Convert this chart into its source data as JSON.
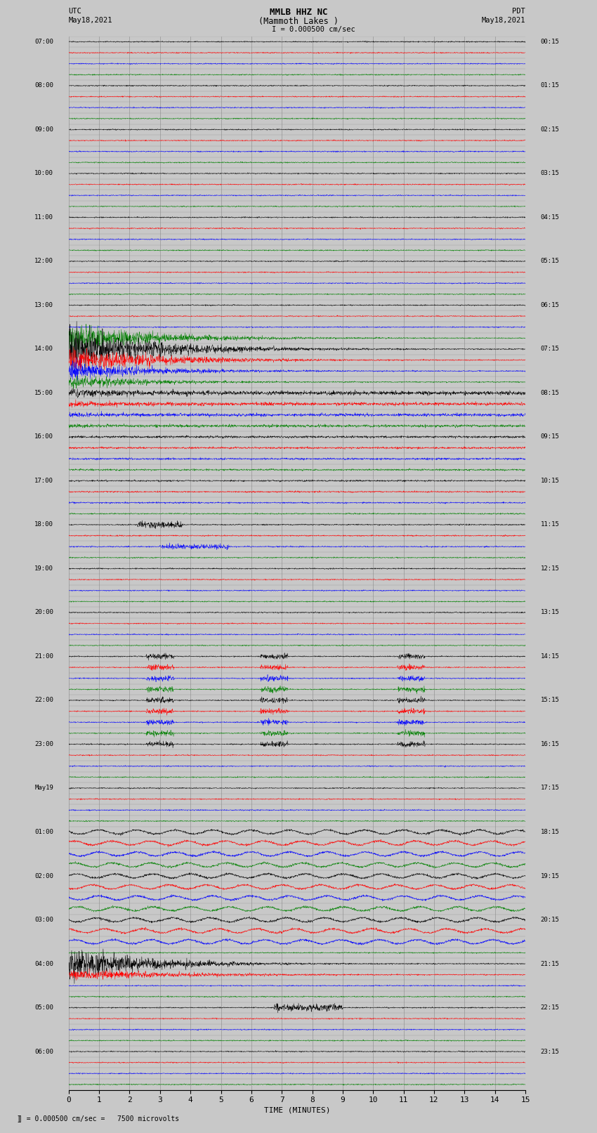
{
  "title_line1": "MMLB HHZ NC",
  "title_line2": "(Mammoth Lakes )",
  "title_scale": "I = 0.000500 cm/sec",
  "left_header_line1": "UTC",
  "left_header_line2": "May18,2021",
  "right_header_line1": "PDT",
  "right_header_line2": "May18,2021",
  "xlabel": "TIME (MINUTES)",
  "bottom_note": "= 0.000500 cm/sec =   7500 microvolts",
  "xlim": [
    0,
    15
  ],
  "xticks": [
    0,
    1,
    2,
    3,
    4,
    5,
    6,
    7,
    8,
    9,
    10,
    11,
    12,
    13,
    14,
    15
  ],
  "background_color": "#c8c8c8",
  "trace_background": "#c8c8c8",
  "grid_color": "#999999",
  "colors_cycle": [
    "black",
    "red",
    "blue",
    "green"
  ],
  "noise_scale": 0.025,
  "num_rows": 96
}
